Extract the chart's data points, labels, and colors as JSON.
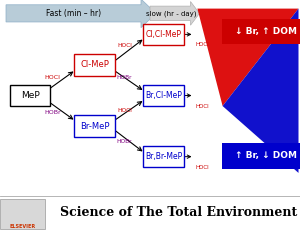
{
  "bg_color": "#ffffff",
  "red_color": "#cc0000",
  "blue_color": "#0000cc",
  "hocl_color": "#cc0000",
  "hobr_color": "#800080",
  "fast_arrow_color": "#b0c0d0",
  "slow_arrow_color": "#c8c8c8",
  "journal_text": "Science of The Total Environment",
  "label_top": "↓ Br, ↑ DOM",
  "label_bottom": "↑ Br, ↓ DOM",
  "fig_width": 3.0,
  "fig_height": 2.33,
  "dpi": 100
}
